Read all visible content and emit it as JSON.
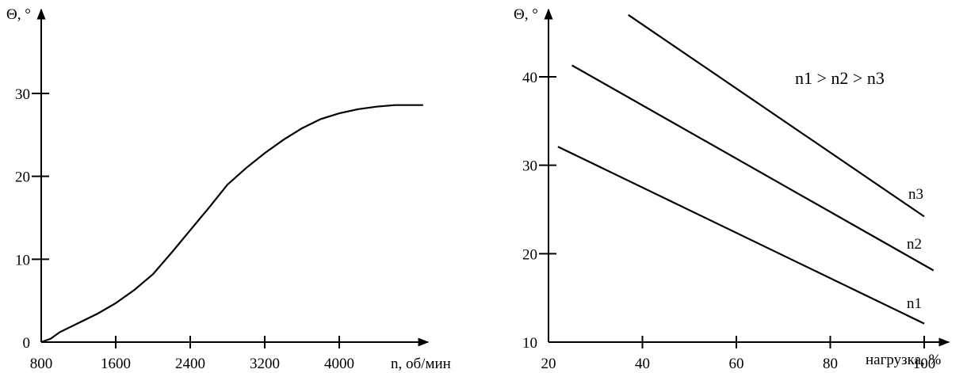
{
  "chart_data": [
    {
      "type": "line",
      "title": "",
      "xlabel": "n, об/мин",
      "ylabel": "Θ, °",
      "xlim": [
        800,
        5000
      ],
      "ylim": [
        0,
        33
      ],
      "x_ticks": [
        "800",
        "1600",
        "2400",
        "3200",
        "4000"
      ],
      "y_ticks": [
        "0",
        "10",
        "20",
        "30"
      ],
      "grid": false,
      "series": [
        {
          "x": [
            800,
            900,
            1000,
            1200,
            1400,
            1600,
            1800,
            2000,
            2200,
            2400,
            2600,
            2800,
            3000,
            3200,
            3400,
            3600,
            3800,
            4000,
            4200,
            4400,
            4600,
            4800,
            4900
          ],
          "y": [
            0,
            0.4,
            1.2,
            2.3,
            3.4,
            4.7,
            6.3,
            8.2,
            10.8,
            13.5,
            16.2,
            19.0,
            21.0,
            22.8,
            24.4,
            25.8,
            26.9,
            27.6,
            28.1,
            28.4,
            28.6,
            28.6,
            28.6
          ]
        }
      ]
    },
    {
      "type": "line",
      "title": "",
      "xlabel": "нагрузка, %",
      "ylabel": "Θ, °",
      "xlim": [
        20,
        104
      ],
      "ylim": [
        10,
        48
      ],
      "x_ticks": [
        "20",
        "40",
        "60",
        "80",
        "100"
      ],
      "y_ticks": [
        "10",
        "20",
        "30",
        "40"
      ],
      "grid": false,
      "annotation": "n1 > n2 > n3",
      "series": [
        {
          "name": "n1",
          "x": [
            22,
            100
          ],
          "y": [
            32.1,
            12.1
          ]
        },
        {
          "name": "n2",
          "x": [
            25,
            102
          ],
          "y": [
            41.3,
            18.1
          ]
        },
        {
          "name": "n3",
          "x": [
            37,
            100
          ],
          "y": [
            47.0,
            24.2
          ]
        }
      ]
    }
  ]
}
